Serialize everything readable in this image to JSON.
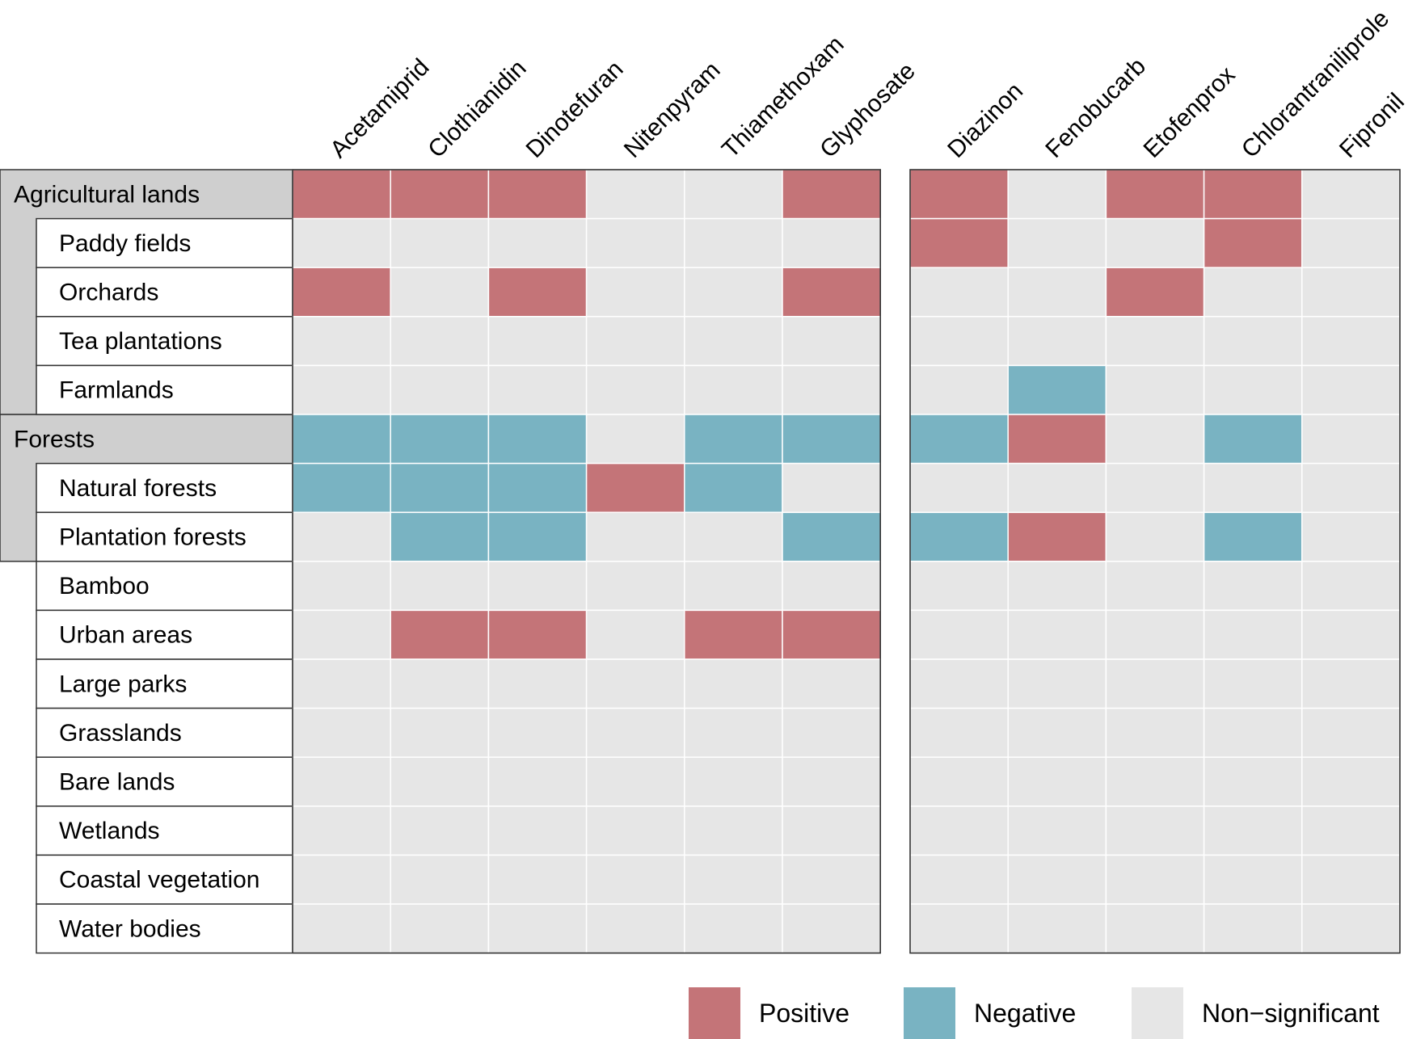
{
  "chart_data": {
    "type": "heatmap",
    "title": "",
    "panels": [
      {
        "name": "left",
        "columns": [
          "Acetamiprid",
          "Clothianidin",
          "Dinotefuran",
          "Nitenpyram",
          "Thiamethoxam",
          "Glyphosate"
        ]
      },
      {
        "name": "right",
        "columns": [
          "Diazinon",
          "Fenobucarb",
          "Etofenprox",
          "Chlorantraniliprole",
          "Fipronil"
        ]
      }
    ],
    "rows": [
      {
        "label": "Agricultural lands",
        "level": 0,
        "group": "Agricultural lands"
      },
      {
        "label": "Paddy fields",
        "level": 1,
        "group": "Agricultural lands"
      },
      {
        "label": "Orchards",
        "level": 1,
        "group": "Agricultural lands"
      },
      {
        "label": "Tea plantations",
        "level": 1,
        "group": "Agricultural lands"
      },
      {
        "label": "Farmlands",
        "level": 1,
        "group": "Agricultural lands"
      },
      {
        "label": "Forests",
        "level": 0,
        "group": "Forests"
      },
      {
        "label": "Natural forests",
        "level": 1,
        "group": "Forests"
      },
      {
        "label": "Plantation forests",
        "level": 1,
        "group": "Forests"
      },
      {
        "label": "Bamboo",
        "level": 1,
        "group": ""
      },
      {
        "label": "Urban areas",
        "level": 1,
        "group": ""
      },
      {
        "label": "Large parks",
        "level": 1,
        "group": ""
      },
      {
        "label": "Grasslands",
        "level": 1,
        "group": ""
      },
      {
        "label": "Bare lands",
        "level": 1,
        "group": ""
      },
      {
        "label": "Wetlands",
        "level": 1,
        "group": ""
      },
      {
        "label": "Coastal vegetation",
        "level": 1,
        "group": ""
      },
      {
        "label": "Water bodies",
        "level": 1,
        "group": ""
      }
    ],
    "values": [
      [
        "P",
        "P",
        "P",
        "N",
        "N",
        "P",
        "P",
        "N",
        "P",
        "P",
        "N"
      ],
      [
        "N",
        "N",
        "N",
        "N",
        "N",
        "N",
        "P",
        "N",
        "N",
        "P",
        "N"
      ],
      [
        "P",
        "N",
        "P",
        "N",
        "N",
        "P",
        "N",
        "N",
        "P",
        "N",
        "N"
      ],
      [
        "N",
        "N",
        "N",
        "N",
        "N",
        "N",
        "N",
        "N",
        "N",
        "N",
        "N"
      ],
      [
        "N",
        "N",
        "N",
        "N",
        "N",
        "N",
        "N",
        "G",
        "N",
        "N",
        "N"
      ],
      [
        "G",
        "G",
        "G",
        "N",
        "G",
        "G",
        "G",
        "P",
        "N",
        "G",
        "N"
      ],
      [
        "G",
        "G",
        "G",
        "P",
        "G",
        "N",
        "N",
        "N",
        "N",
        "N",
        "N"
      ],
      [
        "N",
        "G",
        "G",
        "N",
        "N",
        "G",
        "G",
        "P",
        "N",
        "G",
        "N"
      ],
      [
        "N",
        "N",
        "N",
        "N",
        "N",
        "N",
        "N",
        "N",
        "N",
        "N",
        "N"
      ],
      [
        "N",
        "P",
        "P",
        "N",
        "P",
        "P",
        "N",
        "N",
        "N",
        "N",
        "N"
      ],
      [
        "N",
        "N",
        "N",
        "N",
        "N",
        "N",
        "N",
        "N",
        "N",
        "N",
        "N"
      ],
      [
        "N",
        "N",
        "N",
        "N",
        "N",
        "N",
        "N",
        "N",
        "N",
        "N",
        "N"
      ],
      [
        "N",
        "N",
        "N",
        "N",
        "N",
        "N",
        "N",
        "N",
        "N",
        "N",
        "N"
      ],
      [
        "N",
        "N",
        "N",
        "N",
        "N",
        "N",
        "N",
        "N",
        "N",
        "N",
        "N"
      ],
      [
        "N",
        "N",
        "N",
        "N",
        "N",
        "N",
        "N",
        "N",
        "N",
        "N",
        "N"
      ],
      [
        "N",
        "N",
        "N",
        "N",
        "N",
        "N",
        "N",
        "N",
        "N",
        "N",
        "N"
      ]
    ],
    "legend": {
      "position": "bottom-right",
      "items": [
        {
          "code": "P",
          "label": "Positive",
          "color": "#c47478"
        },
        {
          "code": "G",
          "label": "Negative",
          "color": "#79b3c2"
        },
        {
          "code": "N",
          "label": "Non−significant",
          "color": "#e6e6e6"
        }
      ]
    },
    "colors": {
      "header_fill": "#cfcfcf",
      "cell_border": "#ffffff",
      "frame": "#333333"
    }
  }
}
